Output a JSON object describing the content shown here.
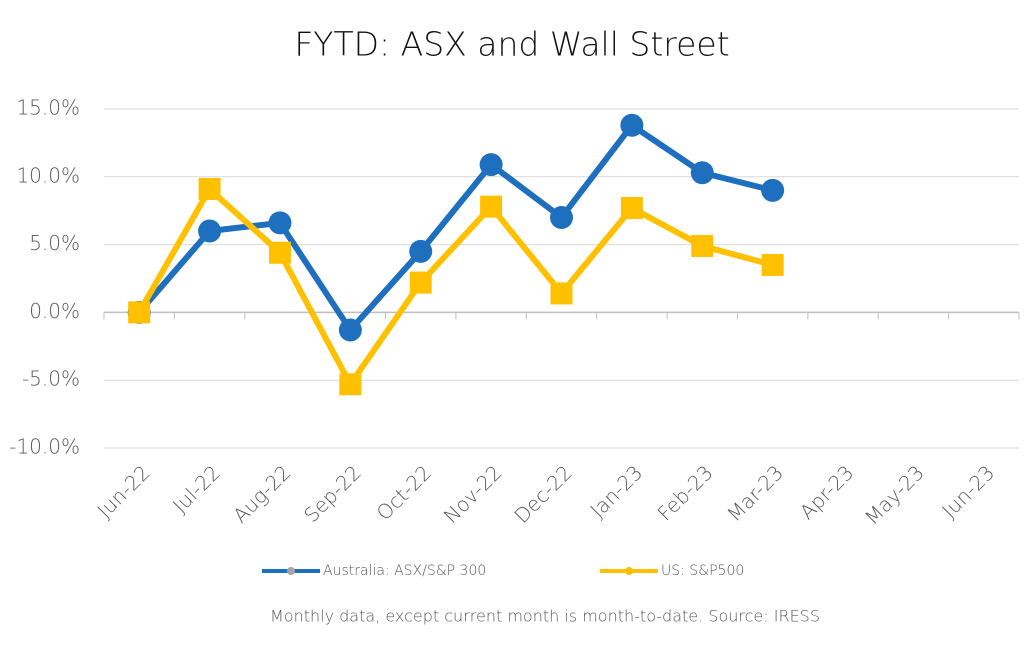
{
  "chart_data": {
    "type": "line",
    "title": "FYTD: ASX and Wall Street",
    "categories": [
      "Jun-22",
      "Jul-22",
      "Aug-22",
      "Sep-22",
      "Oct-22",
      "Nov-22",
      "Dec-22",
      "Jan-23",
      "Feb-23",
      "Mar-23",
      "Apr-23",
      "May-23",
      "Jun-23"
    ],
    "series": [
      {
        "name": "Australia: ASX/S&P 300",
        "color": "#1f6fbf",
        "marker": "circle",
        "values": [
          0,
          6.0,
          6.6,
          -1.3,
          4.5,
          10.9,
          7.0,
          13.8,
          10.3,
          9.0,
          null,
          null,
          null
        ]
      },
      {
        "name": "US: S&P500",
        "color": "#ffc000",
        "marker": "square",
        "values": [
          0,
          9.1,
          4.4,
          -5.3,
          2.2,
          7.8,
          1.4,
          7.7,
          4.9,
          3.5,
          null,
          null,
          null
        ]
      }
    ],
    "ylim": [
      -10,
      15
    ],
    "yticks": [
      {
        "value": -10,
        "label": "-10.0%"
      },
      {
        "value": -5,
        "label": "-5.0%"
      },
      {
        "value": 0,
        "label": "0.0%"
      },
      {
        "value": 5,
        "label": "5.0%"
      },
      {
        "value": 10,
        "label": "10.0%"
      },
      {
        "value": 15,
        "label": "15.0%"
      }
    ],
    "grid": true,
    "legend": "bottom",
    "note": "Monthly data, except current month is month-to-date.  Source: IRESS"
  }
}
